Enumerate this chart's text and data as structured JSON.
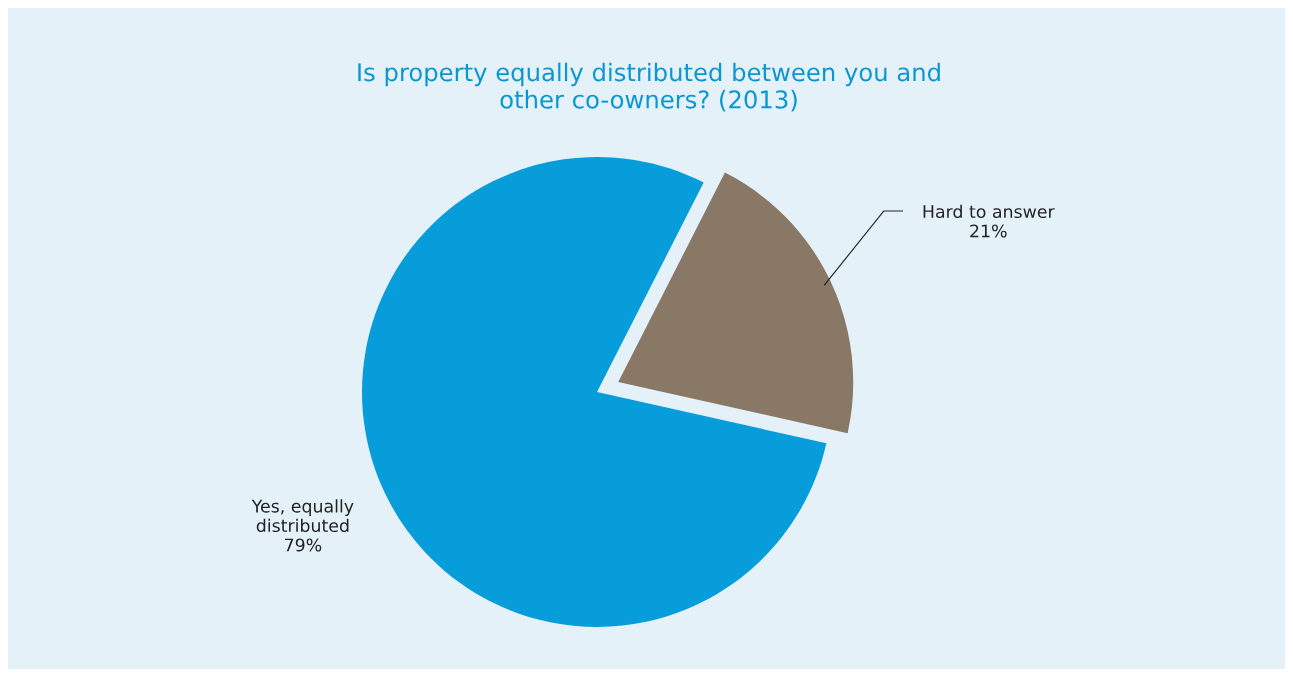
{
  "chart_data": {
    "type": "pie",
    "title": "Is property equally distributed between you and\nother co-owners? (2013)",
    "categories": [
      "Yes, equally\ndistributed",
      "Hard to answer"
    ],
    "values": [
      79,
      21
    ],
    "value_labels": [
      "79%",
      "21%"
    ],
    "colors": [
      "#079dda",
      "#8a7866"
    ],
    "legend": false
  }
}
